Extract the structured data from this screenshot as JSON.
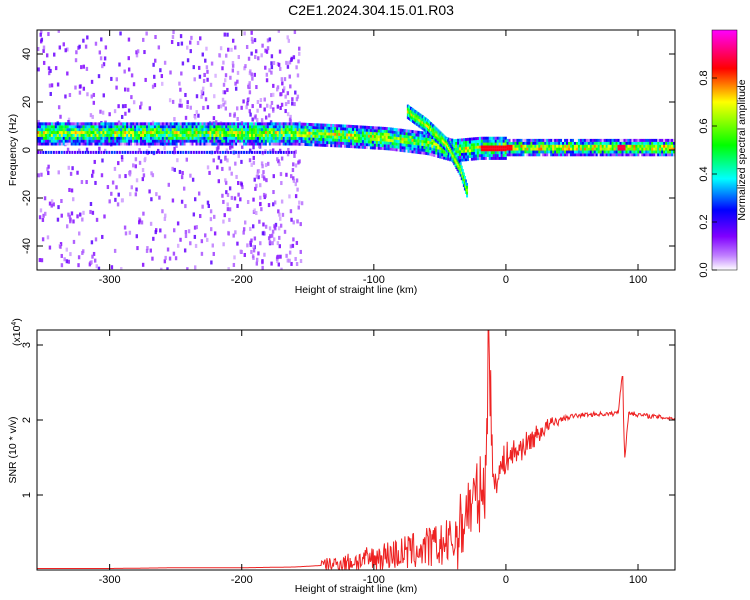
{
  "title": "C2E1.2024.304.15.01.R03",
  "chart_data": [
    {
      "type": "heatmap",
      "xlabel": "Height of straight line (km)",
      "ylabel": "Frequency (Hz)",
      "xlim": [
        -355,
        128
      ],
      "ylim": [
        -50,
        50
      ],
      "xticks": [
        -300,
        -200,
        -100,
        0,
        100
      ],
      "yticks": [
        -40,
        -20,
        0,
        20,
        40
      ],
      "colorbar": {
        "label": "Normalized spectral amplitude",
        "range": [
          0,
          1
        ],
        "ticks": [
          "0.0",
          "0.2",
          "0.4",
          "0.6",
          "0.8"
        ],
        "colors": [
          "#ffffff",
          "#8000ff",
          "#0000ff",
          "#00ffff",
          "#00ff00",
          "#ffff00",
          "#ff0000",
          "#ff00ff"
        ]
      },
      "features": {
        "main_band": {
          "x": [
            -355,
            -240,
            -160,
            -120,
            -90,
            -60,
            -40,
            -20,
            0,
            50,
            128
          ],
          "freq": [
            7,
            7,
            7,
            6,
            5,
            3,
            0,
            1,
            1,
            1,
            1
          ]
        },
        "descending_branch": {
          "x": [
            -75,
            -60,
            -45,
            -35,
            -30
          ],
          "freq": [
            16,
            10,
            2,
            -8,
            -17
          ]
        }
      }
    },
    {
      "type": "line",
      "xlabel": "Height of straight line (km)",
      "ylabel": "SNR (10 * v/v)",
      "yscale_label": "(x10",
      "yscale_exp": "4",
      "xlim": [
        -355,
        128
      ],
      "ylim": [
        0,
        3.2
      ],
      "xticks": [
        -300,
        -200,
        -100,
        0,
        100
      ],
      "yticks": [
        1,
        2,
        3
      ],
      "series": [
        {
          "color": "#ee2222",
          "x": [
            -355,
            -300,
            -250,
            -200,
            -160,
            -140,
            -120,
            -100,
            -90,
            -80,
            -70,
            -60,
            -50,
            -45,
            -40,
            -35,
            -30,
            -25,
            -20,
            -15,
            -13,
            -10,
            -5,
            0,
            10,
            20,
            30,
            40,
            50,
            60,
            70,
            80,
            85,
            88,
            90,
            93,
            100,
            110,
            128
          ],
          "y": [
            0.02,
            0.02,
            0.03,
            0.03,
            0.04,
            0.06,
            0.1,
            0.15,
            0.2,
            0.22,
            0.25,
            0.3,
            0.32,
            0.35,
            0.4,
            0.5,
            0.8,
            0.9,
            1.0,
            1.2,
            3.2,
            1.2,
            1.3,
            1.5,
            1.6,
            1.75,
            1.9,
            2.0,
            2.05,
            2.07,
            2.08,
            2.08,
            2.1,
            2.6,
            1.5,
            2.1,
            2.07,
            2.05,
            2.02
          ]
        }
      ]
    }
  ]
}
